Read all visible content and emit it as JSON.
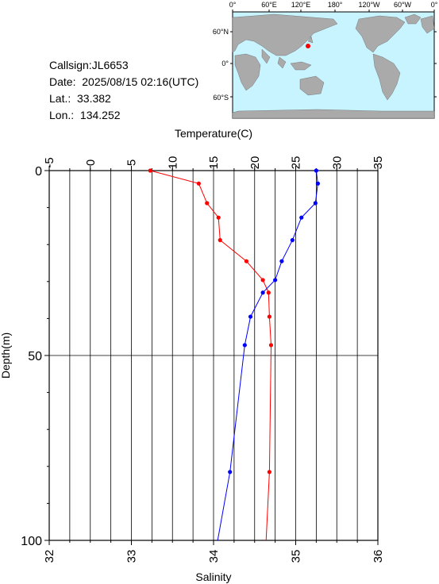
{
  "header": {
    "callsign": "Callsign:JL6653",
    "date": "Date:  2025/08/15 02:16(UTC)",
    "lat": "Lat.:  33.382",
    "lon": "Lon.:  134.252"
  },
  "map": {
    "lon_labels": [
      "0°",
      "60°E",
      "120°E",
      "180°",
      "120°W",
      "60°W",
      "0°"
    ],
    "lat_labels": [
      "60°N",
      "0°",
      "60°S"
    ],
    "station": {
      "lat": 33.382,
      "lon": 134.252
    },
    "colors": {
      "ocean": "#c8f4ff",
      "land": "#aaaaaa",
      "marker": "#ff0000"
    }
  },
  "chart_data": {
    "type": "line",
    "title": "",
    "ylabel": "Depth(m)",
    "ylim": [
      100,
      0
    ],
    "y_ticks": [
      0,
      50,
      100
    ],
    "top_axis": {
      "label": "Temperature(C)",
      "range": [
        -5,
        35
      ],
      "ticks": [
        -5,
        0,
        5,
        10,
        15,
        20,
        25,
        30,
        35
      ]
    },
    "bottom_axis": {
      "label": "Salinity",
      "range": [
        32,
        36
      ],
      "ticks": [
        32,
        33,
        34,
        35,
        36
      ]
    },
    "grid": true,
    "series": [
      {
        "color": "#ff0000",
        "axis": "temperature",
        "points": [
          [
            7.3,
            0
          ],
          [
            13.2,
            3.5
          ],
          [
            14.2,
            8.8
          ],
          [
            15.6,
            12.7
          ],
          [
            15.8,
            18.8
          ],
          [
            19.0,
            24.5
          ],
          [
            21.0,
            29.6
          ],
          [
            21.7,
            33.0
          ],
          [
            21.8,
            39.5
          ],
          [
            22.0,
            47.2
          ],
          [
            21.8,
            81.5
          ],
          [
            21.4,
            100
          ]
        ]
      },
      {
        "color": "#0000ff",
        "axis": "salinity",
        "points": [
          [
            35.25,
            0
          ],
          [
            35.27,
            3.5
          ],
          [
            35.24,
            8.8
          ],
          [
            35.07,
            12.7
          ],
          [
            34.96,
            18.8
          ],
          [
            34.83,
            24.5
          ],
          [
            34.75,
            29.6
          ],
          [
            34.6,
            33.0
          ],
          [
            34.45,
            39.5
          ],
          [
            34.38,
            47.2
          ],
          [
            34.2,
            81.5
          ],
          [
            34.05,
            100
          ]
        ]
      }
    ]
  }
}
